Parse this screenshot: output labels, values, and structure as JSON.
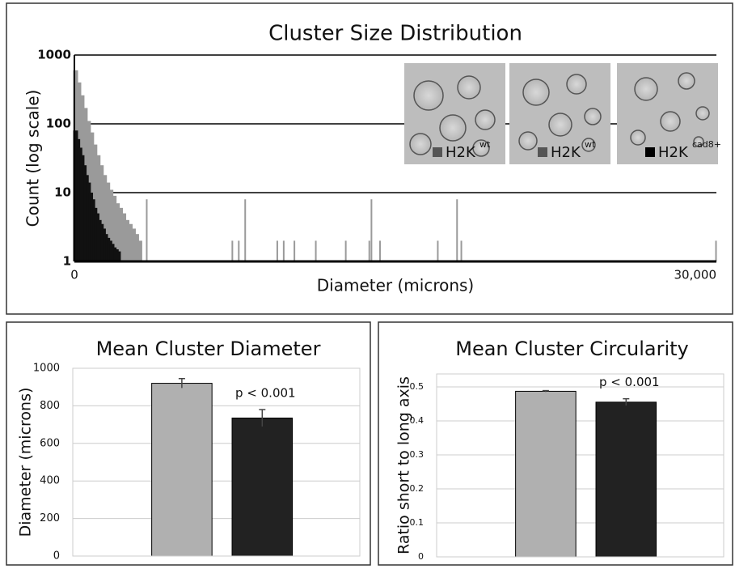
{
  "chart_data": [
    {
      "type": "bar",
      "title": "Cluster Size Distribution",
      "xlabel": "Diameter (microns)",
      "ylabel": "Count (log scale)",
      "log_y": true,
      "grid": true,
      "xlim": [
        0,
        30000
      ],
      "xticks": [
        0,
        {
          "value": 30000,
          "label": "30,000"
        }
      ],
      "ylim": [
        1,
        1000
      ],
      "yticks": [
        1,
        10,
        100,
        1000
      ],
      "series": [
        {
          "color": "#9a9a9a",
          "x": [
            0,
            150,
            300,
            450,
            600,
            750,
            900,
            1050,
            1200,
            1350,
            1500,
            1650,
            1800,
            1950,
            2100,
            2250,
            2400,
            2550,
            2700,
            2850,
            3000,
            3400,
            7400,
            7700,
            8000,
            9500,
            9800,
            10300,
            11300,
            12700,
            13800,
            13900,
            14300,
            17000,
            17900,
            18100,
            30000
          ],
          "values": [
            600,
            400,
            260,
            170,
            110,
            75,
            50,
            35,
            25,
            18,
            14,
            11,
            9,
            7,
            6,
            5,
            4,
            3.5,
            3,
            2.5,
            2,
            8,
            2,
            2,
            8,
            2,
            2,
            2,
            2,
            2,
            2,
            8,
            2,
            2,
            8,
            2,
            2
          ]
        },
        {
          "color": "#111111",
          "x": [
            0,
            100,
            200,
            300,
            400,
            500,
            600,
            700,
            800,
            900,
            1000,
            1100,
            1200,
            1300,
            1400,
            1500,
            1600,
            1700,
            1800,
            1900,
            2000
          ],
          "values": [
            80,
            60,
            45,
            35,
            25,
            18,
            14,
            10,
            8,
            6,
            5,
            4,
            3.5,
            3,
            2.5,
            2.2,
            2,
            1.8,
            1.6,
            1.5,
            1.4
          ]
        }
      ],
      "insets": [
        {
          "label": "H2K",
          "superscript": "wt",
          "color": "#555555"
        },
        {
          "label": "H2K",
          "superscript": "wt",
          "color": "#555555"
        },
        {
          "label": "H2K",
          "superscript": "cad8+",
          "color": "#000000"
        }
      ]
    },
    {
      "type": "bar",
      "title": "Mean Cluster Diameter",
      "ylabel": "Diameter (microns)",
      "grid": true,
      "categories": [
        null,
        null
      ],
      "values": [
        920,
        735
      ],
      "errors": [
        25,
        45
      ],
      "colors": [
        "#b0b0b0",
        "#222222"
      ],
      "ylim": [
        0,
        1000
      ],
      "yticks": [
        0,
        200,
        400,
        600,
        800,
        1000
      ],
      "annotation": "p < 0.001"
    },
    {
      "type": "bar",
      "title": "Mean Cluster Circularity",
      "ylabel": "Ratio short to long axis",
      "grid": true,
      "categories": [
        null,
        null
      ],
      "values": [
        0.487,
        0.455
      ],
      "errors": [
        0.002,
        0.01
      ],
      "colors": [
        "#b0b0b0",
        "#222222"
      ],
      "ylim": [
        0,
        0.538
      ],
      "yticks": [
        0,
        0.1,
        0.2,
        0.3,
        0.4,
        0.5
      ],
      "annotation": "p < 0.001"
    }
  ]
}
